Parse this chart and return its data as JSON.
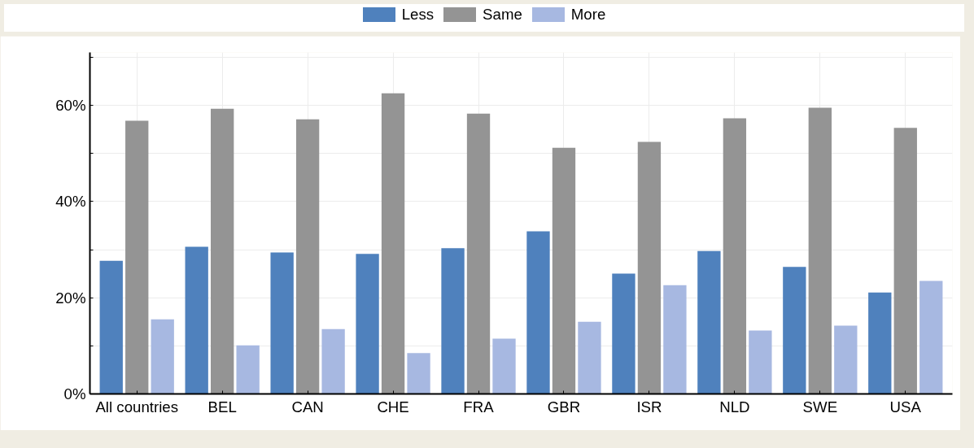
{
  "chart_data": {
    "type": "bar",
    "categories": [
      "All countries",
      "BEL",
      "CAN",
      "CHE",
      "FRA",
      "GBR",
      "ISR",
      "NLD",
      "SWE",
      "USA"
    ],
    "series": [
      {
        "name": "Less",
        "color": "#4f81bd",
        "values": [
          27.7,
          30.6,
          29.4,
          29.1,
          30.3,
          33.8,
          25.0,
          29.7,
          26.4,
          21.1
        ]
      },
      {
        "name": "Same",
        "color": "#949494",
        "values": [
          56.8,
          59.3,
          57.1,
          62.5,
          58.3,
          51.2,
          52.4,
          57.3,
          59.5,
          55.3
        ]
      },
      {
        "name": "More",
        "color": "#a7b8e1",
        "values": [
          15.5,
          10.1,
          13.5,
          8.5,
          11.5,
          15.0,
          22.6,
          13.2,
          14.2,
          23.5
        ]
      }
    ],
    "ylim": [
      0,
      71
    ],
    "yticks": [
      {
        "value": 0,
        "label": "0%"
      },
      {
        "value": 10,
        "label": null
      },
      {
        "value": 20,
        "label": "20%"
      },
      {
        "value": 30,
        "label": null
      },
      {
        "value": 40,
        "label": "40%"
      },
      {
        "value": 50,
        "label": null
      },
      {
        "value": 60,
        "label": "60%"
      },
      {
        "value": 70,
        "label": null
      }
    ],
    "grid": true,
    "legend": "top"
  }
}
